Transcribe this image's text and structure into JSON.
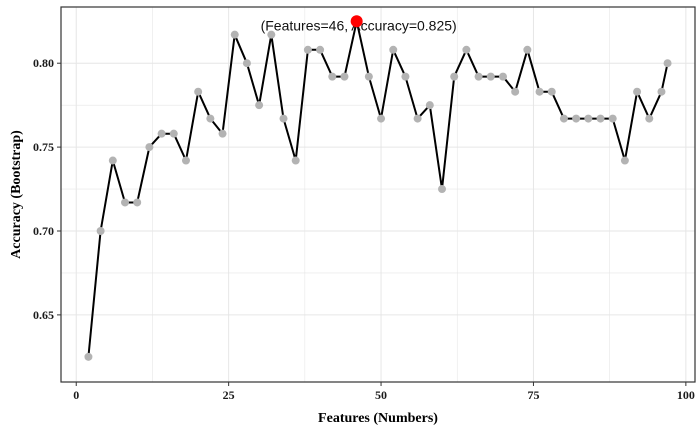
{
  "chart_data": {
    "type": "line",
    "xlabel": "Features (Numbers)",
    "ylabel": "Accuracy (Bootstrap)",
    "xlim": [
      -2.5,
      101.5
    ],
    "ylim": [
      0.61,
      0.8335
    ],
    "x_ticks": [
      0,
      25,
      50,
      75,
      100
    ],
    "x_tick_labels": [
      "0",
      "25",
      "50",
      "75",
      "100"
    ],
    "y_ticks": [
      0.65,
      0.7,
      0.75,
      0.8
    ],
    "y_tick_labels": [
      "0.65",
      "0.70",
      "0.75",
      "0.80"
    ],
    "grid": true,
    "series": [
      {
        "x": [
          2,
          4,
          6,
          8,
          10,
          12,
          14,
          16,
          18,
          20,
          22,
          24,
          26,
          28,
          30,
          32,
          34,
          36,
          38,
          40,
          42,
          44,
          46,
          48,
          50,
          52,
          54,
          56,
          58,
          60,
          62,
          64,
          66,
          68,
          70,
          72,
          74,
          76,
          78,
          80,
          82,
          84,
          86,
          88,
          90,
          92,
          94,
          96,
          97
        ],
        "y": [
          0.625,
          0.7,
          0.742,
          0.717,
          0.717,
          0.75,
          0.758,
          0.758,
          0.742,
          0.783,
          0.767,
          0.758,
          0.817,
          0.8,
          0.775,
          0.817,
          0.767,
          0.742,
          0.808,
          0.808,
          0.792,
          0.792,
          0.825,
          0.792,
          0.767,
          0.808,
          0.792,
          0.767,
          0.775,
          0.725,
          0.792,
          0.808,
          0.792,
          0.792,
          0.792,
          0.783,
          0.808,
          0.783,
          0.783,
          0.767,
          0.767,
          0.767,
          0.767,
          0.767,
          0.742,
          0.783,
          0.767,
          0.783,
          0.8
        ]
      }
    ],
    "highlight": {
      "x": 46,
      "y": 0.825,
      "label": "(Features=46, Accuracy=0.825)"
    },
    "colors": {
      "line": "#000000",
      "points": "#b3b3b3",
      "highlight": "#ff0000",
      "grid": "#e6e6e6",
      "panel_border": "#333333"
    }
  }
}
